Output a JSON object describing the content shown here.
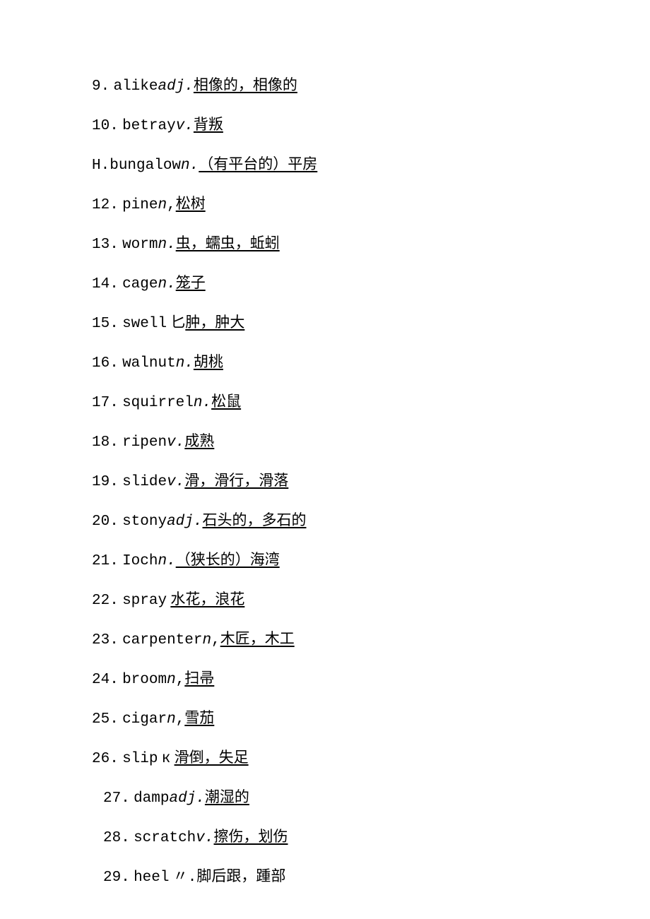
{
  "font": {
    "body_size_pt": 16,
    "mono_family": "Courier New",
    "cjk_family": "SimSun",
    "color": "#000000",
    "background": "#ffffff"
  },
  "entries": [
    {
      "num": "9.",
      "word": "alike",
      "pos": "adj.",
      "sep": "",
      "def": "相像的，相像的",
      "indent": false
    },
    {
      "num": "10.",
      "word": "betray",
      "pos": "v.",
      "sep": "",
      "def": "背叛",
      "indent": false
    },
    {
      "num": "H.",
      "word": "bungalow",
      "pos": "n.",
      "sep": "",
      "def": "（有平台的）平房",
      "indent": false,
      "tight": true
    },
    {
      "num": "12.",
      "word": "pine",
      "pos": "n",
      "sep": ",",
      "def": "松树",
      "indent": false
    },
    {
      "num": "13.",
      "word": "worm",
      "pos": "n.",
      "sep": "",
      "def": "虫，蠕虫，蚯蚓",
      "indent": false
    },
    {
      "num": "14.",
      "word": "cage",
      "pos": "n.",
      "sep": "",
      "def": "笼子",
      "indent": false
    },
    {
      "num": "15.",
      "word": "swell",
      "pos": "匕",
      "sep": "",
      "def": "肿，肿大",
      "indent": false,
      "pos_italic": false,
      "pos_space": true
    },
    {
      "num": "16.",
      "word": "walnut",
      "pos": "n.",
      "sep": "",
      "def": "胡桃",
      "indent": false
    },
    {
      "num": "17.",
      "word": "squirrel",
      "pos": "n.",
      "sep": "",
      "def": "松鼠",
      "indent": false
    },
    {
      "num": "18.",
      "word": "ripen",
      "pos": "v.",
      "sep": "",
      "def": "成熟",
      "indent": false
    },
    {
      "num": "19.",
      "word": "slide",
      "pos": "v.",
      "sep": "",
      "def": "滑，滑行，滑落",
      "indent": false
    },
    {
      "num": "20.",
      "word": "stony",
      "pos": "adj.",
      "sep": "",
      "def": "石头的，多石的",
      "indent": false
    },
    {
      "num": "21.",
      "word": "Ioch",
      "pos": "n.",
      "sep": "",
      "def": "（狭长的）海湾",
      "indent": false
    },
    {
      "num": "22.",
      "word": "spray",
      "pos": "",
      "sep": "",
      "def": "水花，浪花",
      "indent": false,
      "word_space": true
    },
    {
      "num": "23.",
      "word": "carpenter",
      "pos": "n",
      "sep": ",",
      "def": "木匠，木工",
      "indent": false
    },
    {
      "num": "24.",
      "word": "broom",
      "pos": "n",
      "sep": ",",
      "def": "扫帚",
      "indent": false
    },
    {
      "num": "25.",
      "word": "cigar",
      "pos": "n",
      "sep": ",",
      "def": "雪茄",
      "indent": false
    },
    {
      "num": "26.",
      "word": "slip",
      "pos": "к",
      "sep": "",
      "def": "滑倒，失足",
      "indent": false,
      "pos_italic": false,
      "pos_space": true,
      "def_space": true
    },
    {
      "num": "27.",
      "word": "damp",
      "pos": "adj.",
      "sep": "",
      "def": "潮湿的",
      "indent": true
    },
    {
      "num": "28.",
      "word": "scratch",
      "pos": "v.",
      "sep": "",
      "def": "擦伤，划伤",
      "indent": true
    },
    {
      "num": "29.",
      "word": "heel",
      "pos": "〃",
      "sep": ".",
      "def": "脚后跟，踵部",
      "indent": true,
      "pos_italic": false,
      "pos_space": true,
      "def_plain": true
    }
  ]
}
